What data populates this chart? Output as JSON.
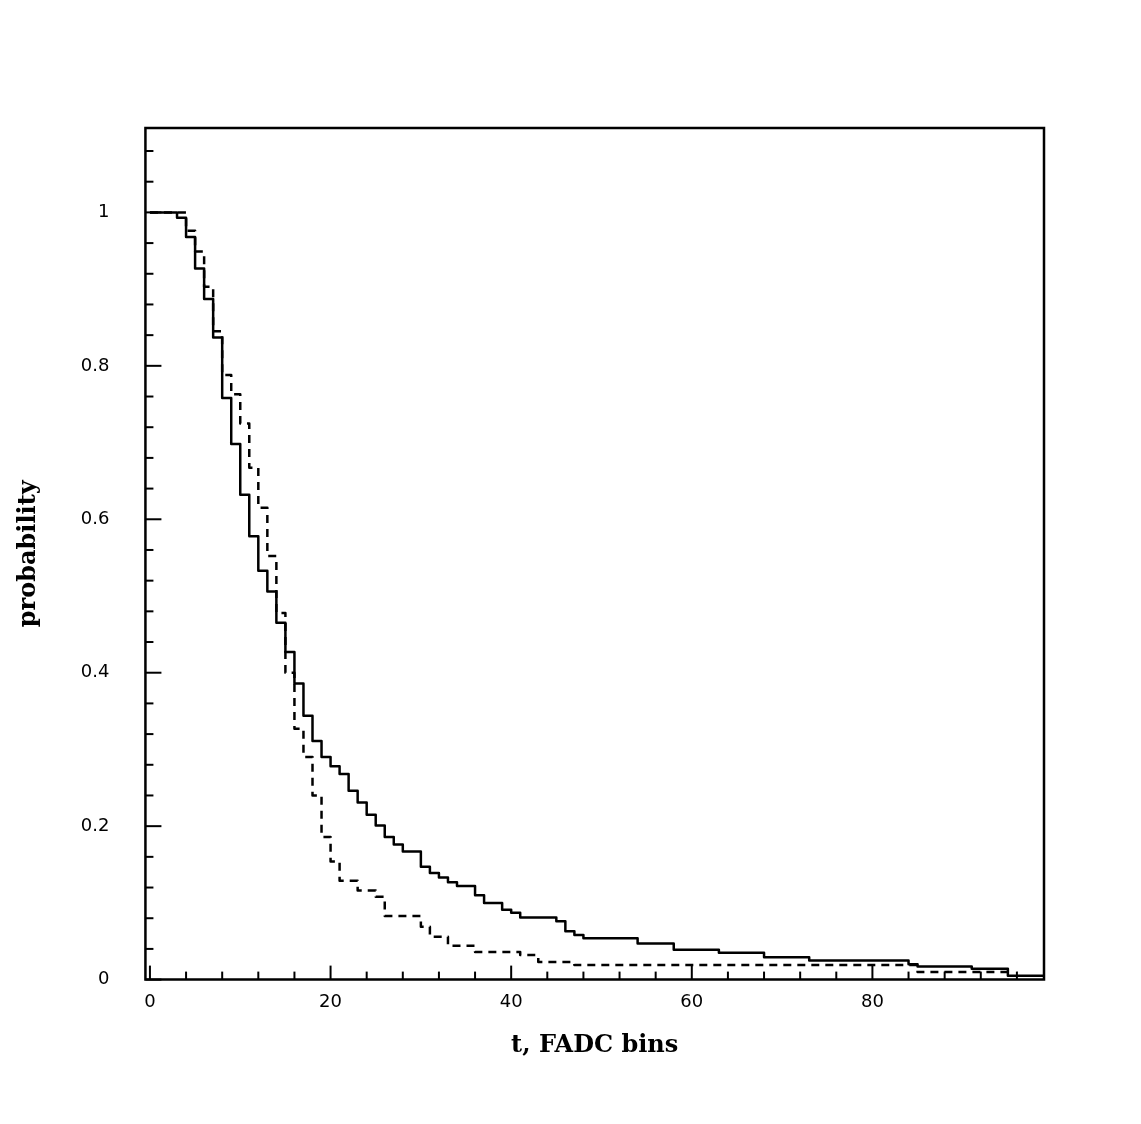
{
  "chart_data": {
    "type": "step",
    "xlabel": "t, FADC bins",
    "ylabel": "probability",
    "xlim": [
      -0.5,
      99
    ],
    "ylim": [
      0,
      1.11
    ],
    "xticks": [
      0,
      {
        "value": 4,
        "label": null
      },
      {
        "value": 8,
        "label": null
      },
      {
        "value": 12,
        "label": null
      },
      {
        "value": 16,
        "label": null
      },
      20,
      {
        "value": 24,
        "label": null
      },
      {
        "value": 28,
        "label": null
      },
      {
        "value": 32,
        "label": null
      },
      {
        "value": 36,
        "label": null
      },
      40,
      {
        "value": 44,
        "label": null
      },
      {
        "value": 48,
        "label": null
      },
      {
        "value": 52,
        "label": null
      },
      {
        "value": 56,
        "label": null
      },
      60,
      {
        "value": 64,
        "label": null
      },
      {
        "value": 68,
        "label": null
      },
      {
        "value": 72,
        "label": null
      },
      {
        "value": 76,
        "label": null
      },
      80,
      {
        "value": 84,
        "label": null
      },
      {
        "value": 88,
        "label": null
      },
      {
        "value": 92,
        "label": null
      },
      {
        "value": 96,
        "label": null
      }
    ],
    "yticks": [
      0,
      {
        "value": 0.04,
        "label": null
      },
      {
        "value": 0.08,
        "label": null
      },
      {
        "value": 0.12,
        "label": null
      },
      {
        "value": 0.16,
        "label": null
      },
      0.2,
      {
        "value": 0.24,
        "label": null
      },
      {
        "value": 0.28,
        "label": null
      },
      {
        "value": 0.32,
        "label": null
      },
      {
        "value": 0.36,
        "label": null
      },
      0.4,
      {
        "value": 0.44,
        "label": null
      },
      {
        "value": 0.48,
        "label": null
      },
      {
        "value": 0.52,
        "label": null
      },
      {
        "value": 0.56,
        "label": null
      },
      0.6,
      {
        "value": 0.64,
        "label": null
      },
      {
        "value": 0.68,
        "label": null
      },
      {
        "value": 0.72,
        "label": null
      },
      {
        "value": 0.76,
        "label": null
      },
      0.8,
      {
        "value": 0.84,
        "label": null
      },
      {
        "value": 0.88,
        "label": null
      },
      {
        "value": 0.92,
        "label": null
      },
      {
        "value": 0.96,
        "label": null
      },
      1,
      {
        "value": 1.04,
        "label": null
      },
      {
        "value": 1.08,
        "label": null
      }
    ],
    "legend": false,
    "series": [
      {
        "color": "#000000",
        "line_style": "solid",
        "x": [
          0,
          3,
          4,
          5,
          6,
          7,
          8,
          9,
          10,
          11,
          12,
          13,
          14,
          15,
          16,
          17,
          18,
          19,
          20,
          21,
          22,
          23,
          24,
          25,
          26,
          27,
          28,
          30,
          31,
          32,
          33,
          34,
          36,
          37,
          39,
          40,
          41,
          45,
          46,
          47,
          48,
          54,
          58,
          63,
          68,
          73,
          84,
          85,
          91,
          95,
          99
        ],
        "values": [
          1.0,
          0.993,
          0.968,
          0.927,
          0.887,
          0.837,
          0.758,
          0.698,
          0.632,
          0.578,
          0.533,
          0.506,
          0.465,
          0.427,
          0.386,
          0.344,
          0.311,
          0.29,
          0.278,
          0.268,
          0.246,
          0.231,
          0.215,
          0.201,
          0.186,
          0.176,
          0.167,
          0.147,
          0.139,
          0.133,
          0.127,
          0.122,
          0.11,
          0.1,
          0.091,
          0.087,
          0.081,
          0.076,
          0.063,
          0.058,
          0.054,
          0.047,
          0.039,
          0.035,
          0.029,
          0.025,
          0.02,
          0.017,
          0.014,
          0.005,
          0.005
        ]
      },
      {
        "color": "#000000",
        "line_style": "dashed",
        "x": [
          0,
          4,
          5,
          6,
          7,
          8,
          9,
          10,
          11,
          12,
          13,
          14,
          15,
          16,
          17,
          18,
          19,
          20,
          21,
          23,
          25,
          26,
          30,
          31,
          33,
          36,
          41,
          43,
          47,
          85,
          95
        ],
        "values": [
          1.0,
          0.976,
          0.949,
          0.903,
          0.845,
          0.788,
          0.763,
          0.725,
          0.667,
          0.615,
          0.552,
          0.478,
          0.4,
          0.327,
          0.29,
          0.24,
          0.186,
          0.154,
          0.129,
          0.116,
          0.108,
          0.083,
          0.069,
          0.056,
          0.044,
          0.036,
          0.032,
          0.023,
          0.019,
          0.01,
          0.01
        ]
      }
    ]
  }
}
